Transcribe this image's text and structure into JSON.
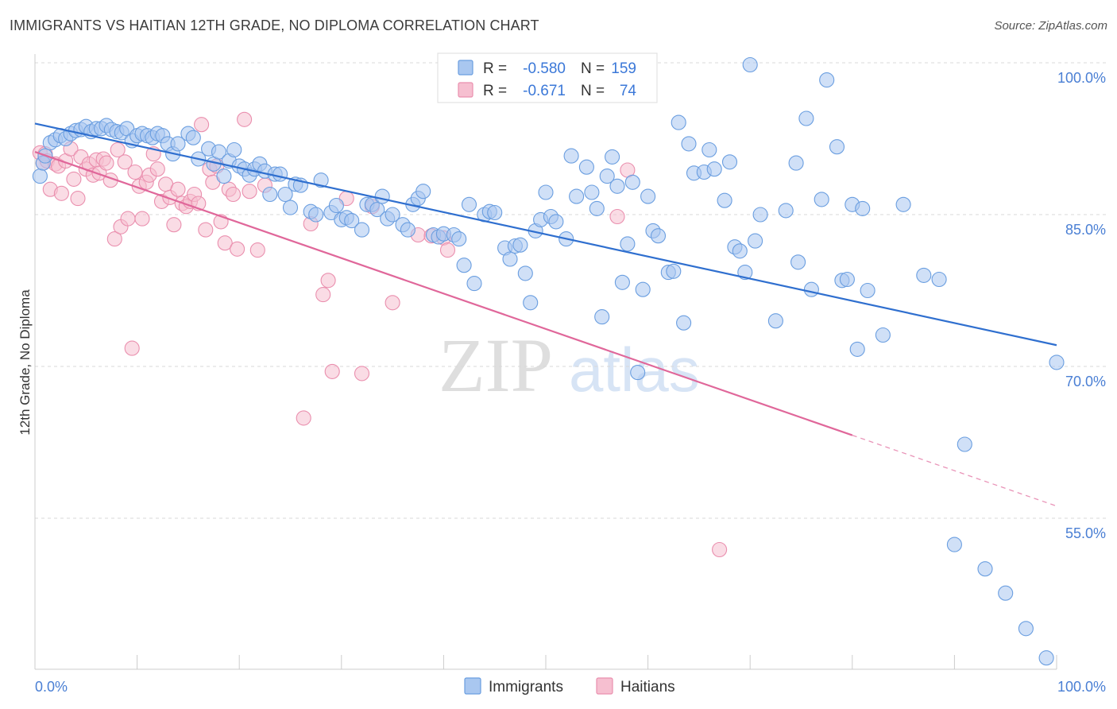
{
  "title": "IMMIGRANTS VS HAITIAN 12TH GRADE, NO DIPLOMA CORRELATION CHART",
  "source": "Source: ZipAtlas.com",
  "colors": {
    "blue_fill": "#a9c7f0",
    "blue_stroke": "#6a9ee0",
    "blue_line": "#2f6fcf",
    "pink_fill": "#f6bfd0",
    "pink_stroke": "#ea8fae",
    "pink_line": "#e0679a",
    "tick_color": "#4a7fd4",
    "grid": "#d8d8d8"
  },
  "legend": {
    "rows": [
      {
        "series": "Immigrants",
        "r_label": "R =",
        "r_value": "-0.580",
        "n_label": "N =",
        "n_value": "159"
      },
      {
        "series": "Haitians",
        "r_label": "R =",
        "r_value": "-0.671",
        "n_label": "N =",
        "n_value": "74"
      }
    ]
  },
  "watermark": {
    "zip": "ZIP",
    "atlas": "atlas"
  },
  "chart_data": {
    "type": "scatter",
    "title": "IMMIGRANTS VS HAITIAN 12TH GRADE, NO DIPLOMA CORRELATION CHART",
    "xlabel": "",
    "ylabel": "12th Grade, No Diploma",
    "xlim": [
      0,
      100
    ],
    "ylim": [
      40,
      102
    ],
    "x_tick_labels": [
      "0.0%",
      "100.0%"
    ],
    "y_ticks": [
      {
        "value": 100,
        "label": "100.0%"
      },
      {
        "value": 85,
        "label": "85.0%"
      },
      {
        "value": 70,
        "label": "70.0%"
      },
      {
        "value": 55,
        "label": "55.0%"
      }
    ],
    "grid": true,
    "series": [
      {
        "name": "Immigrants",
        "r": -0.58,
        "n": 159,
        "trend": {
          "x0": 0,
          "y0": 94.0,
          "x1": 100,
          "y1": 72.1
        },
        "points": [
          [
            0.5,
            88.8
          ],
          [
            0.8,
            90.1
          ],
          [
            1.0,
            90.8
          ],
          [
            1.5,
            92.1
          ],
          [
            2.0,
            92.4
          ],
          [
            2.5,
            92.8
          ],
          [
            3.0,
            92.5
          ],
          [
            3.5,
            93.0
          ],
          [
            4.0,
            93.3
          ],
          [
            4.5,
            93.4
          ],
          [
            5.0,
            93.7
          ],
          [
            5.5,
            93.2
          ],
          [
            6.0,
            93.5
          ],
          [
            6.5,
            93.5
          ],
          [
            7.0,
            93.8
          ],
          [
            7.5,
            93.4
          ],
          [
            8.0,
            93.2
          ],
          [
            8.5,
            93.1
          ],
          [
            9.0,
            93.5
          ],
          [
            9.5,
            92.3
          ],
          [
            10.0,
            92.8
          ],
          [
            10.5,
            93.0
          ],
          [
            11.0,
            92.8
          ],
          [
            11.5,
            92.6
          ],
          [
            12.0,
            93.0
          ],
          [
            12.5,
            92.8
          ],
          [
            13.0,
            92.0
          ],
          [
            13.5,
            91.0
          ],
          [
            14.0,
            92.0
          ],
          [
            15.0,
            93.0
          ],
          [
            15.5,
            92.6
          ],
          [
            16.0,
            90.5
          ],
          [
            17.0,
            91.5
          ],
          [
            17.5,
            90.0
          ],
          [
            18.0,
            91.2
          ],
          [
            18.5,
            88.8
          ],
          [
            19.0,
            90.3
          ],
          [
            19.5,
            91.4
          ],
          [
            20.0,
            89.8
          ],
          [
            20.5,
            89.5
          ],
          [
            21.0,
            88.9
          ],
          [
            21.5,
            89.5
          ],
          [
            22.0,
            90.0
          ],
          [
            22.5,
            89.3
          ],
          [
            23.0,
            87.0
          ],
          [
            23.5,
            89.0
          ],
          [
            24.0,
            89.0
          ],
          [
            24.5,
            87.0
          ],
          [
            25.0,
            85.7
          ],
          [
            25.5,
            88.0
          ],
          [
            26.0,
            87.9
          ],
          [
            27.0,
            85.3
          ],
          [
            27.5,
            85.0
          ],
          [
            28.0,
            88.4
          ],
          [
            29.0,
            85.2
          ],
          [
            29.5,
            85.9
          ],
          [
            30.0,
            84.5
          ],
          [
            30.5,
            84.7
          ],
          [
            31.0,
            84.4
          ],
          [
            32.0,
            83.5
          ],
          [
            32.5,
            86.0
          ],
          [
            33.0,
            86.0
          ],
          [
            33.5,
            85.5
          ],
          [
            34.0,
            86.8
          ],
          [
            34.5,
            84.6
          ],
          [
            35.0,
            85.0
          ],
          [
            36.0,
            84.0
          ],
          [
            36.5,
            83.5
          ],
          [
            37.0,
            86.0
          ],
          [
            37.5,
            86.6
          ],
          [
            38.0,
            87.3
          ],
          [
            39.0,
            83.0
          ],
          [
            39.5,
            82.8
          ],
          [
            40.0,
            83.1
          ],
          [
            41.0,
            83.0
          ],
          [
            41.5,
            82.6
          ],
          [
            42.0,
            80.0
          ],
          [
            42.5,
            86.0
          ],
          [
            43.0,
            78.2
          ],
          [
            44.0,
            85.0
          ],
          [
            44.5,
            85.3
          ],
          [
            45.0,
            85.2
          ],
          [
            46.0,
            81.7
          ],
          [
            46.5,
            80.6
          ],
          [
            47.0,
            81.9
          ],
          [
            47.5,
            82.0
          ],
          [
            48.0,
            79.2
          ],
          [
            48.5,
            76.3
          ],
          [
            49.0,
            83.4
          ],
          [
            49.5,
            84.5
          ],
          [
            50.0,
            87.2
          ],
          [
            50.5,
            84.8
          ],
          [
            51.0,
            84.3
          ],
          [
            52.0,
            82.6
          ],
          [
            52.5,
            90.8
          ],
          [
            53.0,
            86.8
          ],
          [
            54.0,
            89.7
          ],
          [
            54.5,
            87.2
          ],
          [
            55.0,
            85.6
          ],
          [
            55.5,
            74.9
          ],
          [
            56.0,
            88.8
          ],
          [
            56.5,
            90.7
          ],
          [
            57.0,
            87.8
          ],
          [
            57.5,
            78.3
          ],
          [
            58.0,
            82.1
          ],
          [
            58.5,
            88.2
          ],
          [
            59.0,
            69.4
          ],
          [
            59.5,
            77.6
          ],
          [
            60.0,
            86.8
          ],
          [
            60.5,
            83.4
          ],
          [
            61.0,
            82.9
          ],
          [
            62.0,
            79.3
          ],
          [
            62.5,
            79.4
          ],
          [
            63.0,
            94.1
          ],
          [
            63.5,
            74.3
          ],
          [
            64.0,
            92.0
          ],
          [
            64.5,
            89.1
          ],
          [
            65.5,
            89.2
          ],
          [
            66.0,
            91.4
          ],
          [
            66.5,
            89.5
          ],
          [
            67.5,
            86.4
          ],
          [
            68.0,
            90.2
          ],
          [
            68.5,
            81.8
          ],
          [
            69.0,
            81.4
          ],
          [
            69.5,
            79.3
          ],
          [
            70.0,
            99.8
          ],
          [
            70.5,
            82.4
          ],
          [
            71.0,
            85.0
          ],
          [
            72.5,
            74.5
          ],
          [
            73.5,
            85.4
          ],
          [
            74.5,
            90.1
          ],
          [
            74.7,
            80.3
          ],
          [
            75.5,
            94.5
          ],
          [
            76.0,
            77.6
          ],
          [
            77.0,
            86.5
          ],
          [
            77.5,
            98.3
          ],
          [
            78.5,
            91.7
          ],
          [
            79.0,
            78.5
          ],
          [
            79.5,
            78.6
          ],
          [
            80.0,
            86.0
          ],
          [
            80.5,
            71.7
          ],
          [
            81.0,
            85.6
          ],
          [
            81.5,
            77.5
          ],
          [
            83.0,
            73.1
          ],
          [
            85.0,
            86.0
          ],
          [
            87.0,
            79.0
          ],
          [
            88.5,
            78.6
          ],
          [
            90.0,
            52.4
          ],
          [
            91.0,
            62.3
          ],
          [
            93.0,
            50.0
          ],
          [
            95.0,
            47.6
          ],
          [
            97.0,
            44.1
          ],
          [
            99.0,
            41.2
          ],
          [
            100.0,
            70.4
          ]
        ]
      },
      {
        "name": "Haitians",
        "r": -0.671,
        "n": 74,
        "trend": {
          "x0": 0,
          "y0": 91.2,
          "x1": 80,
          "y1": 63.2,
          "dash_x1": 100,
          "dash_y1": 56.2
        },
        "points": [
          [
            0.5,
            91.1
          ],
          [
            0.8,
            90.1
          ],
          [
            1.0,
            91.0
          ],
          [
            1.2,
            90.3
          ],
          [
            1.5,
            87.5
          ],
          [
            2.0,
            90.0
          ],
          [
            2.3,
            89.8
          ],
          [
            2.6,
            87.1
          ],
          [
            3.0,
            90.3
          ],
          [
            3.5,
            91.5
          ],
          [
            3.8,
            88.5
          ],
          [
            4.2,
            86.6
          ],
          [
            4.5,
            90.7
          ],
          [
            5.0,
            89.5
          ],
          [
            5.3,
            90.0
          ],
          [
            5.7,
            88.9
          ],
          [
            6.0,
            90.4
          ],
          [
            6.3,
            89.1
          ],
          [
            6.7,
            90.5
          ],
          [
            7.0,
            90.1
          ],
          [
            7.4,
            88.4
          ],
          [
            7.8,
            82.6
          ],
          [
            8.1,
            91.4
          ],
          [
            8.4,
            83.8
          ],
          [
            8.8,
            90.2
          ],
          [
            9.1,
            84.6
          ],
          [
            9.5,
            71.8
          ],
          [
            9.8,
            89.2
          ],
          [
            10.2,
            87.8
          ],
          [
            10.5,
            84.6
          ],
          [
            10.9,
            88.2
          ],
          [
            11.2,
            88.9
          ],
          [
            11.6,
            91.0
          ],
          [
            12.0,
            89.5
          ],
          [
            12.4,
            86.3
          ],
          [
            12.8,
            88.0
          ],
          [
            13.2,
            86.7
          ],
          [
            13.6,
            84.0
          ],
          [
            14.0,
            87.5
          ],
          [
            14.4,
            86.1
          ],
          [
            14.8,
            85.8
          ],
          [
            15.2,
            86.3
          ],
          [
            15.6,
            87.0
          ],
          [
            16.0,
            86.1
          ],
          [
            16.3,
            93.9
          ],
          [
            16.7,
            83.5
          ],
          [
            17.1,
            89.5
          ],
          [
            17.4,
            88.2
          ],
          [
            17.8,
            89.8
          ],
          [
            18.2,
            84.3
          ],
          [
            18.6,
            82.2
          ],
          [
            19.0,
            87.5
          ],
          [
            19.4,
            87.0
          ],
          [
            19.8,
            81.6
          ],
          [
            20.5,
            94.4
          ],
          [
            21.0,
            87.3
          ],
          [
            21.8,
            81.5
          ],
          [
            22.5,
            87.9
          ],
          [
            26.3,
            64.9
          ],
          [
            27.0,
            84.1
          ],
          [
            28.2,
            77.1
          ],
          [
            28.7,
            78.5
          ],
          [
            29.1,
            69.5
          ],
          [
            30.5,
            86.6
          ],
          [
            32.0,
            69.3
          ],
          [
            33.0,
            85.8
          ],
          [
            35.0,
            76.3
          ],
          [
            37.5,
            83.0
          ],
          [
            38.8,
            82.9
          ],
          [
            40.0,
            82.7
          ],
          [
            40.4,
            81.5
          ],
          [
            57.0,
            84.8
          ],
          [
            58.0,
            89.4
          ],
          [
            67.0,
            51.9
          ]
        ]
      }
    ]
  }
}
